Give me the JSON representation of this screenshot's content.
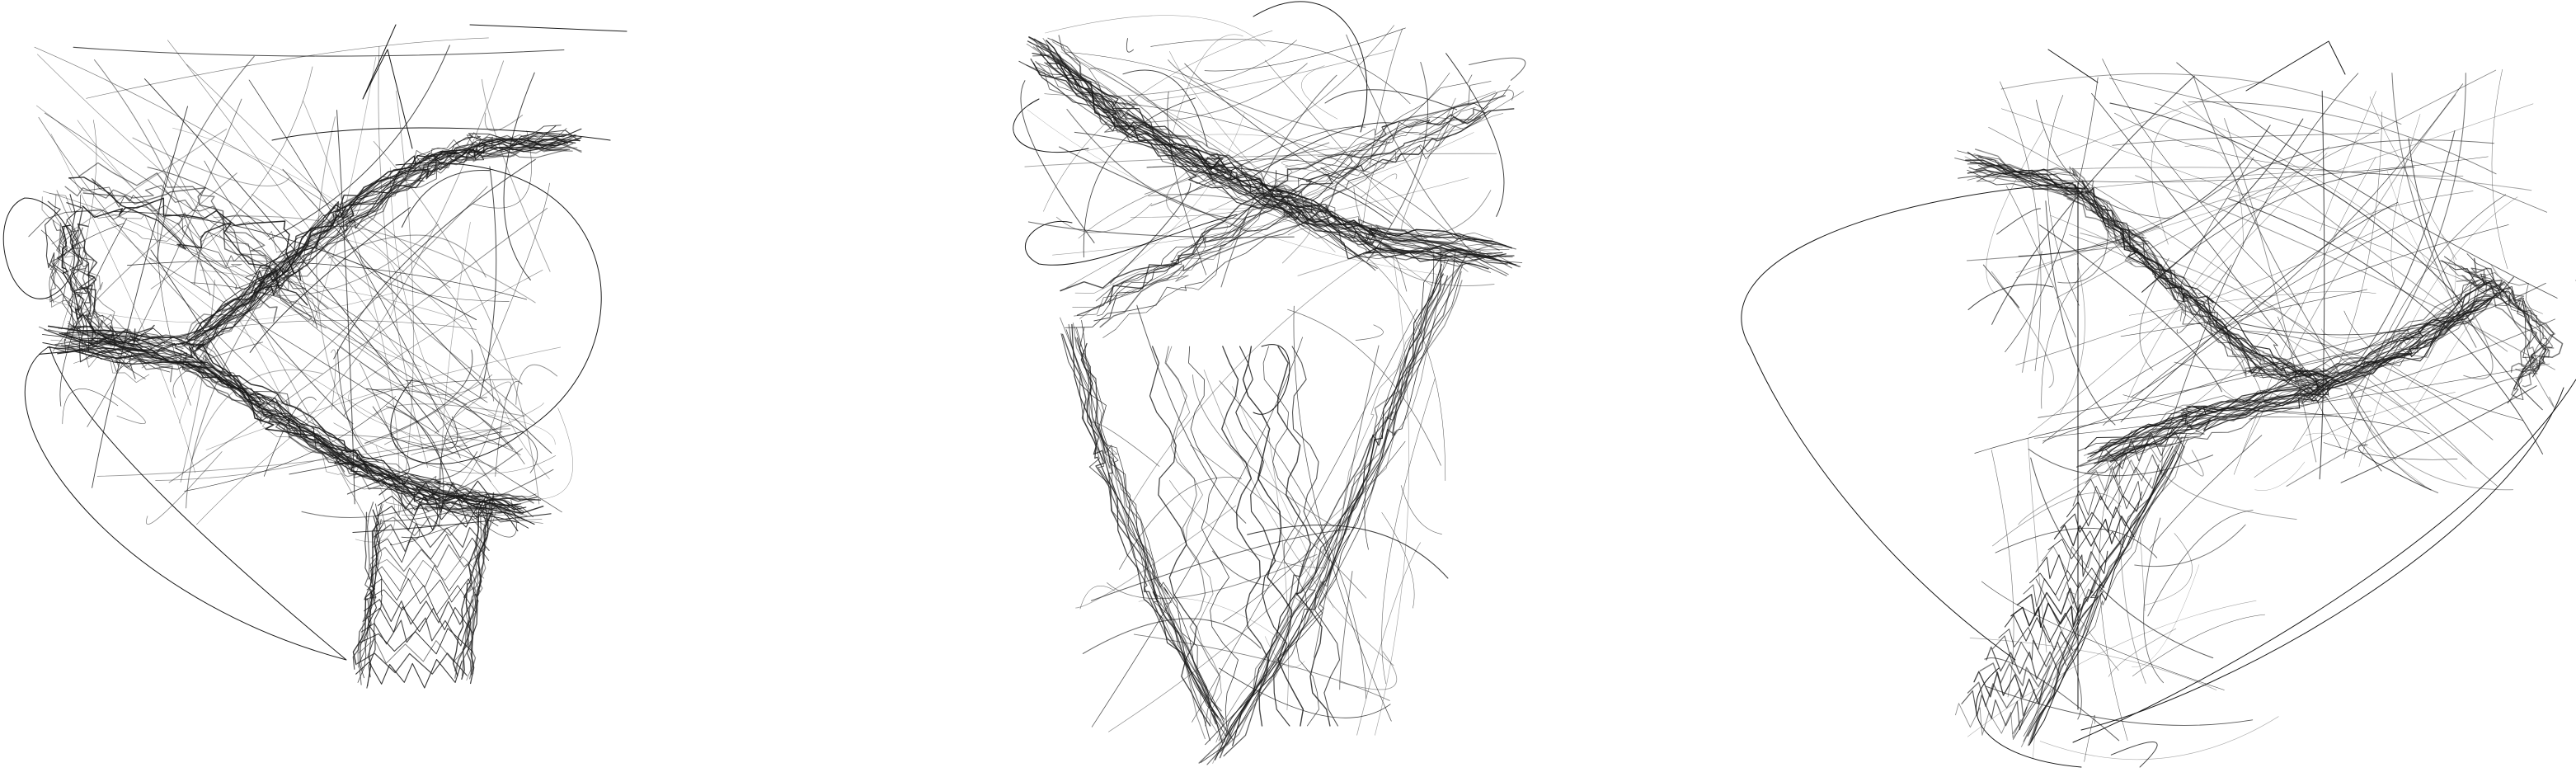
{
  "figure": {
    "background_color": "#ffffff",
    "stroke_color": "#1a1a1a",
    "panel_count": 3,
    "panels": [
      {
        "id": "left",
        "shape": "tilted T-shaped scribble with lower trunk"
      },
      {
        "id": "middle",
        "shape": "inverted cone / triangular scribble"
      },
      {
        "id": "right",
        "shape": "Y-shaped scribble with long diagonal trunk"
      }
    ]
  }
}
